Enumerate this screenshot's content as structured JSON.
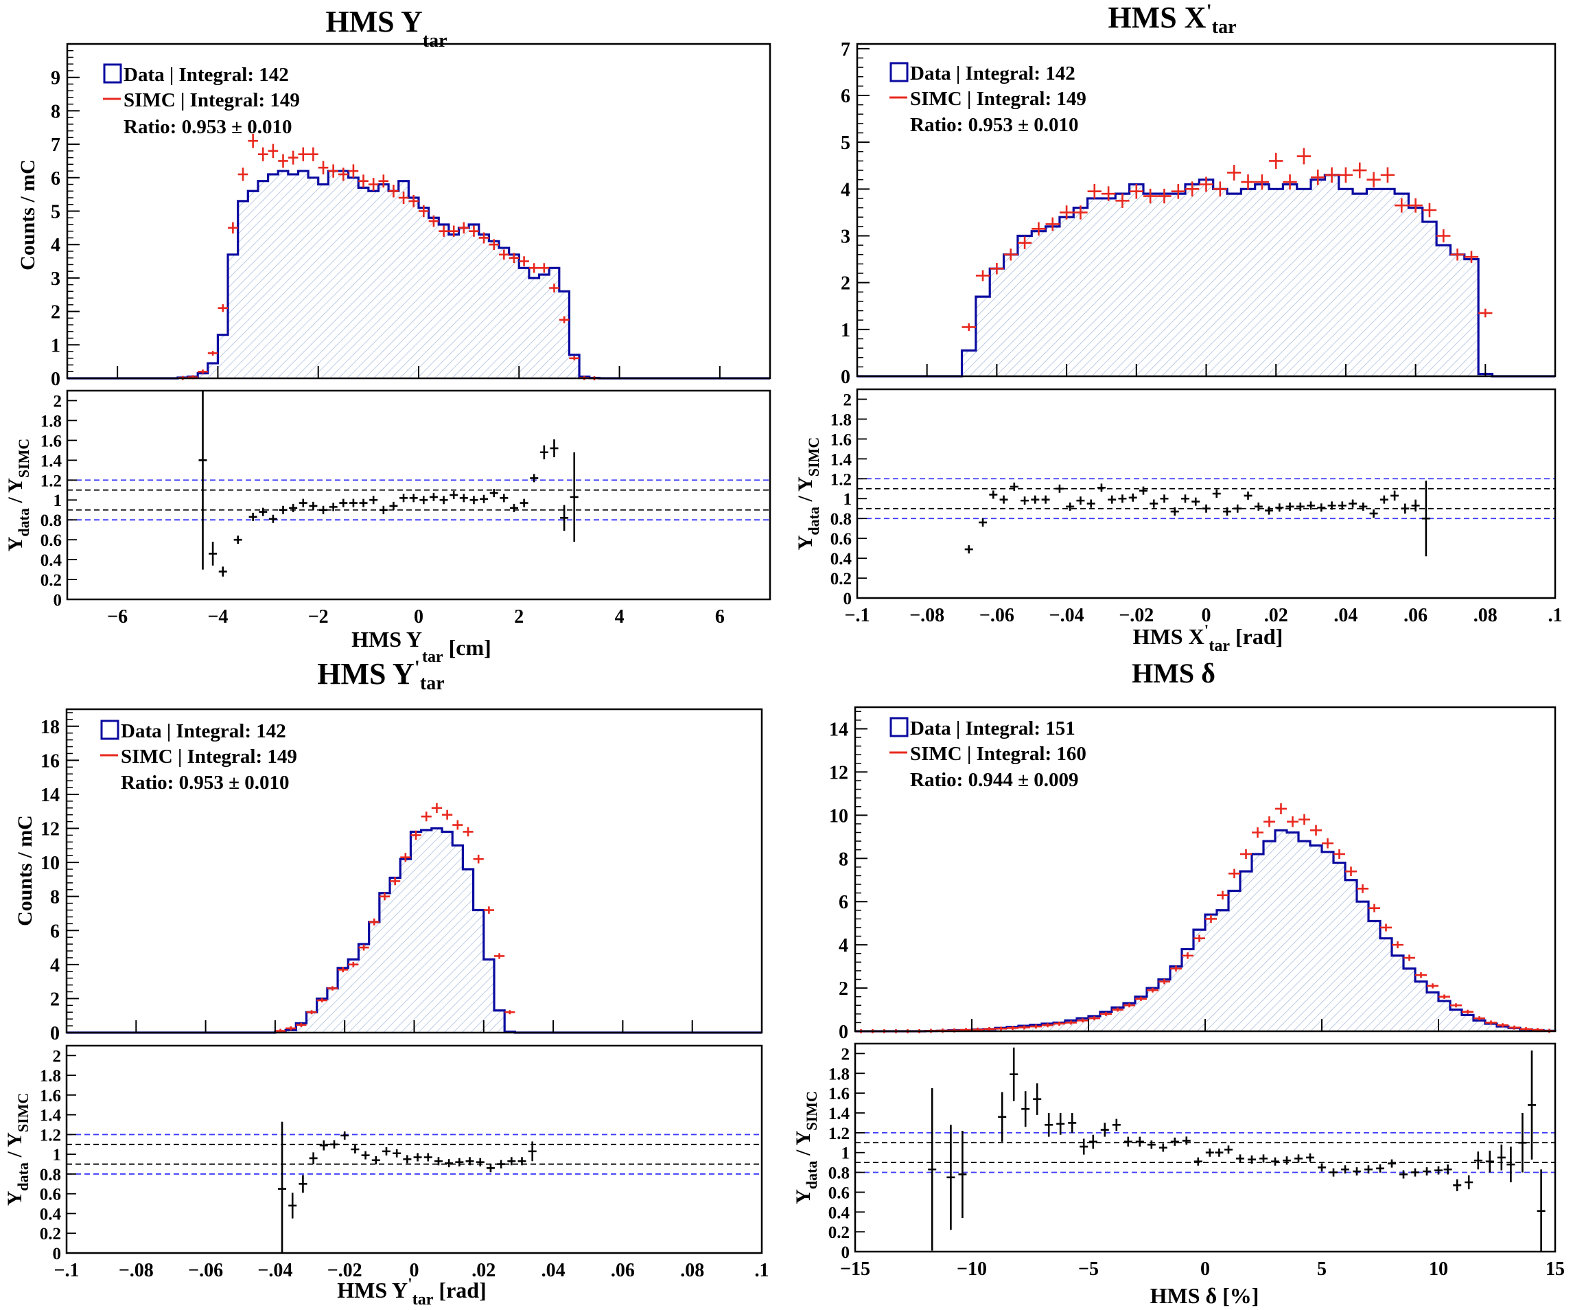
{
  "colors": {
    "data": "#0a0aa0",
    "simc": "#e8281e",
    "ratio": "#000000",
    "band_inner": "#000000",
    "band_outer": "#3c3cff"
  },
  "panels": [
    {
      "title_main": "HMS Y",
      "title_sub": "tar",
      "title_prime": "",
      "xlabel_main": "HMS Y",
      "xlabel_prime": "",
      "xlabel_sub": "tar",
      "xlabel_unit": " [cm]",
      "ylabel": "Counts / mC",
      "legend": {
        "data": "Data | Integral: 142",
        "simc": "SIMC | Integral: 149",
        "ratio": "Ratio: 0.953  ± 0.010"
      }
    },
    {
      "title_main": "HMS X",
      "title_sub": "tar",
      "title_prime": "'",
      "xlabel_main": "HMS X",
      "xlabel_prime": "'",
      "xlabel_sub": "tar",
      "xlabel_unit": " [rad]",
      "ylabel": "",
      "legend": {
        "data": "Data | Integral: 142",
        "simc": "SIMC | Integral: 149",
        "ratio": "Ratio: 0.953  ± 0.010"
      }
    },
    {
      "title_main": "HMS Y",
      "title_sub": "tar",
      "title_prime": "'",
      "xlabel_main": "HMS Y",
      "xlabel_prime": "'",
      "xlabel_sub": "tar",
      "xlabel_unit": " [rad]",
      "ylabel": "Counts / mC",
      "legend": {
        "data": "Data | Integral: 142",
        "simc": "SIMC | Integral: 149",
        "ratio": "Ratio: 0.953  ± 0.010"
      }
    },
    {
      "title_main": "HMS  δ",
      "title_sub": "",
      "title_prime": "",
      "xlabel_main": "HMS  δ [%]",
      "xlabel_prime": "",
      "xlabel_sub": "",
      "xlabel_unit": "",
      "ylabel": "",
      "legend": {
        "data": "Data | Integral: 151",
        "simc": "SIMC | Integral: 160",
        "ratio": "Ratio: 0.944  ± 0.009"
      }
    }
  ],
  "ratio_ylabel": {
    "main": "Y",
    "sub1": "data",
    "mid": " / Y",
    "sub2": "SIMC"
  },
  "chart_data": [
    {
      "type": "histogram",
      "title": "HMS Ytar",
      "xlabel": "HMS Ytar [cm]",
      "ylabel": "Counts / mC",
      "xlim": [
        -7,
        7
      ],
      "ylim": [
        0,
        10
      ],
      "xticks": [
        -6,
        -4,
        -2,
        0,
        2,
        4,
        6
      ],
      "yticks": [
        0,
        1,
        2,
        3,
        4,
        5,
        6,
        7,
        8,
        9
      ],
      "bin_edges_range": [
        -4.8,
        3.6
      ],
      "bin_width": 0.2,
      "data_values": [
        0.02,
        0.05,
        0.15,
        0.45,
        1.3,
        3.7,
        5.3,
        5.6,
        5.9,
        6.1,
        6.2,
        6.1,
        6.2,
        6.0,
        5.8,
        6.2,
        6.2,
        6.0,
        5.7,
        5.6,
        5.8,
        5.6,
        5.9,
        5.4,
        5.1,
        4.8,
        4.6,
        4.3,
        4.5,
        4.6,
        4.3,
        4.1,
        3.9,
        3.7,
        3.3,
        3.0,
        3.1,
        3.3,
        2.6,
        0.7,
        0.05,
        0.01
      ],
      "simc_values": [
        0.01,
        0.03,
        0.2,
        0.75,
        2.1,
        4.5,
        6.1,
        7.1,
        6.7,
        6.8,
        6.5,
        6.6,
        6.7,
        6.7,
        6.3,
        6.2,
        6.1,
        6.2,
        5.9,
        5.8,
        5.9,
        5.6,
        5.4,
        5.3,
        5.0,
        4.7,
        4.4,
        4.4,
        4.5,
        4.4,
        4.2,
        4.0,
        3.7,
        3.6,
        3.5,
        3.3,
        3.3,
        2.7,
        1.75,
        0.6,
        0.01,
        0.0
      ],
      "ratio": {
        "ylim": [
          0,
          2.1
        ],
        "band_inner": [
          0.9,
          1.1
        ],
        "band_outer": [
          0.8,
          1.2
        ],
        "x": [
          -4.3,
          -4.1,
          -3.9,
          -3.6,
          -3.3,
          -3.1,
          -2.9,
          -2.7,
          -2.5,
          -2.3,
          -2.1,
          -1.9,
          -1.7,
          -1.5,
          -1.3,
          -1.1,
          -0.9,
          -0.7,
          -0.5,
          -0.3,
          -0.1,
          0.1,
          0.3,
          0.5,
          0.7,
          0.9,
          1.1,
          1.3,
          1.5,
          1.7,
          1.9,
          2.1,
          2.3,
          2.5,
          2.7,
          2.9,
          3.1,
          3.4,
          3.6
        ],
        "y": [
          1.4,
          0.46,
          0.28,
          0.6,
          0.83,
          0.88,
          0.81,
          0.9,
          0.92,
          0.97,
          0.94,
          0.9,
          0.93,
          0.97,
          0.97,
          0.97,
          1.0,
          0.9,
          0.94,
          1.02,
          1.02,
          1.0,
          1.03,
          1.0,
          1.05,
          1.02,
          1.0,
          1.01,
          1.07,
          1.02,
          0.92,
          0.97,
          1.22,
          1.48,
          1.52,
          0.82,
          1.03,
          0,
          0
        ],
        "err": [
          1.1,
          0.12,
          0.05,
          0.04,
          0.03,
          0.03,
          0.02,
          0.02,
          0.02,
          0.02,
          0.02,
          0.02,
          0.02,
          0.02,
          0.02,
          0.02,
          0.02,
          0.02,
          0.02,
          0.02,
          0.02,
          0.02,
          0.02,
          0.02,
          0.02,
          0.02,
          0.02,
          0.02,
          0.02,
          0.02,
          0.02,
          0.03,
          0.03,
          0.07,
          0.09,
          0.13,
          0.45,
          0,
          0
        ]
      }
    },
    {
      "type": "histogram",
      "title": "HMS X'tar",
      "xlabel": "HMS X'tar [rad]",
      "ylabel": "",
      "xlim": [
        -0.1,
        0.1
      ],
      "ylim": [
        0,
        7.1
      ],
      "xticks": [
        -0.1,
        -0.08,
        -0.06,
        -0.04,
        -0.02,
        0,
        0.02,
        0.04,
        0.06,
        0.08,
        0.1
      ],
      "yticks": [
        0,
        1,
        2,
        3,
        4,
        5,
        6,
        7
      ],
      "bin_edges_range": [
        -0.07,
        0.072
      ],
      "bin_width": 0.004,
      "data_values": [
        0.55,
        1.7,
        2.3,
        2.6,
        3.0,
        3.1,
        3.2,
        3.4,
        3.6,
        3.8,
        3.8,
        3.9,
        4.1,
        3.9,
        3.9,
        3.9,
        4.1,
        4.2,
        4.0,
        3.9,
        4.0,
        4.1,
        4.0,
        4.1,
        4.0,
        4.2,
        4.3,
        4.0,
        3.9,
        4.0,
        4.0,
        3.9,
        3.6,
        3.3,
        2.8,
        2.6,
        2.5,
        0.05
      ],
      "simc_values": [
        1.05,
        2.15,
        2.3,
        2.6,
        2.85,
        3.15,
        3.25,
        3.5,
        3.5,
        3.95,
        3.9,
        3.75,
        3.95,
        3.85,
        3.85,
        3.95,
        4.0,
        4.1,
        4.0,
        4.35,
        4.15,
        4.15,
        4.6,
        4.15,
        4.7,
        4.25,
        4.3,
        4.3,
        4.4,
        4.2,
        4.3,
        3.65,
        3.65,
        3.55,
        3.0,
        2.6,
        2.55,
        1.35
      ],
      "ratio": {
        "ylim": [
          0,
          2.1
        ],
        "band_inner": [
          0.9,
          1.1
        ],
        "band_outer": [
          0.8,
          1.2
        ],
        "x": [
          -0.068,
          -0.064,
          -0.061,
          -0.058,
          -0.055,
          -0.052,
          -0.049,
          -0.046,
          -0.042,
          -0.039,
          -0.036,
          -0.033,
          -0.03,
          -0.027,
          -0.024,
          -0.021,
          -0.018,
          -0.015,
          -0.012,
          -0.009,
          -0.006,
          -0.003,
          0.0,
          0.003,
          0.006,
          0.009,
          0.012,
          0.015,
          0.018,
          0.021,
          0.024,
          0.027,
          0.03,
          0.033,
          0.036,
          0.039,
          0.042,
          0.045,
          0.048,
          0.051,
          0.054,
          0.057,
          0.06,
          0.063,
          0.066,
          0.069,
          0.072
        ],
        "y": [
          0.49,
          0.76,
          1.04,
          0.99,
          1.12,
          0.98,
          0.99,
          0.99,
          1.1,
          0.92,
          0.98,
          0.95,
          1.11,
          0.99,
          1.0,
          1.01,
          1.08,
          0.95,
          1.0,
          0.87,
          1.0,
          0.97,
          0.9,
          1.05,
          0.87,
          0.9,
          1.03,
          0.92,
          0.88,
          0.91,
          0.92,
          0.92,
          0.93,
          0.91,
          0.93,
          0.93,
          0.95,
          0.92,
          0.85,
          0.99,
          1.03,
          0.9,
          0.93,
          0.8,
          0,
          0,
          0
        ],
        "err": [
          0.03,
          0.03,
          0.03,
          0.03,
          0.03,
          0.03,
          0.03,
          0.03,
          0.03,
          0.03,
          0.03,
          0.03,
          0.03,
          0.03,
          0.03,
          0.03,
          0.03,
          0.03,
          0.03,
          0.03,
          0.03,
          0.03,
          0.03,
          0.03,
          0.03,
          0.03,
          0.03,
          0.03,
          0.03,
          0.03,
          0.03,
          0.03,
          0.03,
          0.03,
          0.03,
          0.03,
          0.03,
          0.03,
          0.03,
          0.03,
          0.05,
          0.05,
          0.06,
          0.38,
          0,
          0,
          0
        ]
      }
    },
    {
      "type": "histogram",
      "title": "HMS Y'tar",
      "xlabel": "HMS Y'tar [rad]",
      "ylabel": "Counts / mC",
      "xlim": [
        -0.1,
        0.1
      ],
      "ylim": [
        0,
        19
      ],
      "xticks": [
        -0.1,
        -0.08,
        -0.06,
        -0.04,
        -0.02,
        0,
        0.02,
        0.04,
        0.06,
        0.08,
        0.1
      ],
      "yticks": [
        0,
        2,
        4,
        6,
        8,
        10,
        12,
        14,
        16,
        18
      ],
      "bin_edges_range": [
        -0.04,
        0.04
      ],
      "bin_width": 0.003,
      "data_values": [
        0.05,
        0.15,
        0.55,
        1.2,
        2.0,
        2.6,
        3.8,
        4.3,
        5.2,
        6.5,
        8.2,
        9.1,
        10.2,
        11.8,
        11.9,
        12.0,
        11.8,
        11.0,
        9.6,
        7.2,
        4.3,
        1.3,
        0.05
      ],
      "simc_values": [
        0.1,
        0.25,
        0.45,
        1.2,
        1.9,
        2.6,
        3.7,
        4.0,
        5.0,
        6.5,
        8.0,
        8.9,
        10.3,
        11.6,
        12.7,
        13.2,
        12.8,
        12.2,
        11.8,
        10.2,
        7.2,
        4.5,
        1.2
      ],
      "ratio": {
        "ylim": [
          0,
          2.1
        ],
        "band_inner": [
          0.9,
          1.1
        ],
        "band_outer": [
          0.8,
          1.2
        ],
        "x": [
          -0.038,
          -0.035,
          -0.032,
          -0.029,
          -0.026,
          -0.023,
          -0.02,
          -0.017,
          -0.014,
          -0.011,
          -0.008,
          -0.005,
          -0.002,
          0.001,
          0.004,
          0.007,
          0.01,
          0.013,
          0.016,
          0.019,
          0.022,
          0.025,
          0.028,
          0.031,
          0.034
        ],
        "y": [
          0.65,
          0.48,
          0.7,
          0.96,
          1.09,
          1.1,
          1.19,
          1.05,
          0.99,
          0.94,
          1.03,
          1.01,
          0.95,
          0.97,
          0.97,
          0.93,
          0.91,
          0.92,
          0.93,
          0.92,
          0.86,
          0.9,
          0.93,
          0.93,
          1.03
        ],
        "err": [
          0.68,
          0.13,
          0.09,
          0.06,
          0.05,
          0.04,
          0.03,
          0.03,
          0.02,
          0.02,
          0.02,
          0.02,
          0.02,
          0.02,
          0.02,
          0.02,
          0.02,
          0.02,
          0.02,
          0.02,
          0.02,
          0.02,
          0.03,
          0.04,
          0.1
        ]
      }
    },
    {
      "type": "histogram",
      "title": "HMS δ",
      "xlabel": "HMS δ [%]",
      "ylabel": "",
      "xlim": [
        -15,
        15
      ],
      "ylim": [
        0,
        15
      ],
      "xticks": [
        -15,
        -10,
        -5,
        0,
        5,
        10,
        15
      ],
      "yticks": [
        0,
        2,
        4,
        6,
        8,
        10,
        12,
        14
      ],
      "bin_edges_range": [
        -15,
        15
      ],
      "bin_width": 0.5,
      "data_values": [
        0.0,
        0.0,
        0.0,
        0.0,
        0.0,
        0.0,
        0.01,
        0.02,
        0.05,
        0.05,
        0.08,
        0.1,
        0.15,
        0.2,
        0.25,
        0.3,
        0.35,
        0.4,
        0.5,
        0.6,
        0.7,
        0.9,
        1.1,
        1.3,
        1.6,
        2.0,
        2.4,
        3.0,
        3.8,
        4.7,
        5.4,
        5.6,
        6.5,
        7.4,
        8.2,
        8.8,
        9.3,
        9.2,
        8.8,
        8.6,
        8.3,
        7.8,
        7.0,
        6.0,
        5.1,
        4.3,
        3.5,
        2.9,
        2.3,
        1.8,
        1.4,
        1.0,
        0.75,
        0.5,
        0.35,
        0.22,
        0.15,
        0.09,
        0.05,
        0.02
      ],
      "simc_values": [
        0.0,
        0.0,
        0.0,
        0.0,
        0.0,
        0.0,
        0.02,
        0.03,
        0.04,
        0.06,
        0.07,
        0.1,
        0.12,
        0.15,
        0.18,
        0.22,
        0.28,
        0.35,
        0.4,
        0.5,
        0.6,
        0.8,
        1.0,
        1.2,
        1.5,
        1.9,
        2.3,
        2.9,
        3.5,
        4.3,
        5.2,
        6.3,
        7.3,
        8.2,
        9.2,
        9.7,
        10.3,
        9.7,
        9.8,
        9.3,
        8.7,
        8.2,
        7.4,
        6.6,
        5.7,
        4.8,
        4.0,
        3.4,
        2.6,
        2.1,
        1.6,
        1.2,
        0.9,
        0.6,
        0.4,
        0.28,
        0.17,
        0.1,
        0.06,
        0.02
      ],
      "ratio": {
        "ylim": [
          0,
          2.1
        ],
        "band_inner": [
          0.9,
          1.1
        ],
        "band_outer": [
          0.8,
          1.2
        ],
        "x": [
          -11.7,
          -10.9,
          -10.4,
          -8.7,
          -8.2,
          -7.7,
          -7.2,
          -6.7,
          -6.2,
          -5.7,
          -5.2,
          -4.8,
          -4.3,
          -3.8,
          -3.3,
          -2.8,
          -2.3,
          -1.8,
          -1.3,
          -0.8,
          -0.3,
          0.2,
          0.6,
          1.0,
          1.5,
          2.0,
          2.5,
          3.0,
          3.5,
          4.0,
          4.5,
          5.0,
          5.5,
          6.0,
          6.5,
          7.0,
          7.5,
          8.0,
          8.5,
          9.0,
          9.5,
          10.0,
          10.4,
          10.8,
          11.3,
          11.7,
          12.2,
          12.7,
          13.1,
          13.6,
          14.0,
          14.4
        ],
        "y": [
          0.83,
          0.75,
          0.78,
          1.36,
          1.79,
          1.44,
          1.54,
          1.28,
          1.29,
          1.3,
          1.06,
          1.11,
          1.23,
          1.28,
          1.11,
          1.11,
          1.08,
          1.05,
          1.11,
          1.12,
          0.91,
          1.0,
          1.0,
          1.03,
          0.94,
          0.93,
          0.94,
          0.91,
          0.92,
          0.94,
          0.95,
          0.85,
          0.8,
          0.83,
          0.81,
          0.83,
          0.84,
          0.89,
          0.78,
          0.8,
          0.81,
          0.82,
          0.83,
          0.67,
          0.7,
          0.92,
          0.91,
          0.95,
          0.88,
          1.1,
          1.48,
          0.41
        ],
        "err": [
          0.82,
          0.53,
          0.44,
          0.25,
          0.27,
          0.18,
          0.16,
          0.12,
          0.11,
          0.1,
          0.08,
          0.07,
          0.07,
          0.06,
          0.05,
          0.05,
          0.04,
          0.04,
          0.04,
          0.03,
          0.03,
          0.03,
          0.03,
          0.03,
          0.03,
          0.03,
          0.02,
          0.02,
          0.02,
          0.02,
          0.02,
          0.02,
          0.02,
          0.02,
          0.02,
          0.02,
          0.02,
          0.02,
          0.03,
          0.03,
          0.03,
          0.04,
          0.05,
          0.06,
          0.07,
          0.09,
          0.11,
          0.13,
          0.18,
          0.3,
          0.55,
          0.42
        ]
      }
    }
  ]
}
